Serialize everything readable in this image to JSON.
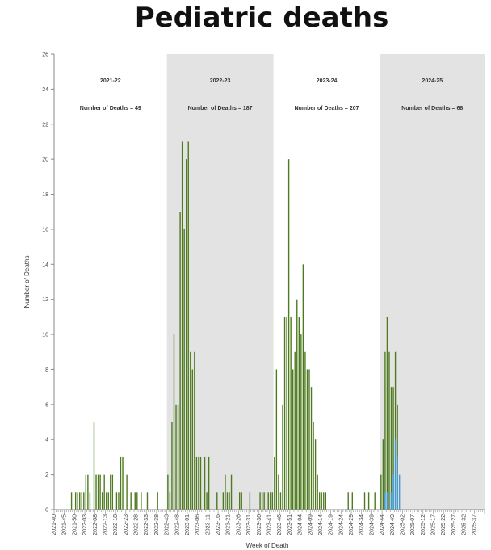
{
  "title": "Pediatric deaths",
  "colors": {
    "bar": "#4d7a1e",
    "current": "#3a9be0",
    "shade": "#e3e3e3",
    "axis": "#888888"
  },
  "chart_data": {
    "type": "bar",
    "title": "Pediatric deaths",
    "xlabel": "Week of Death",
    "ylabel": "Number of Deaths",
    "ylim": [
      0,
      26
    ],
    "yticks": [
      0,
      2,
      4,
      6,
      8,
      10,
      12,
      14,
      16,
      18,
      20,
      22,
      24,
      26
    ],
    "grid": false,
    "x_tick_labels": [
      "2021-40",
      "2021-45",
      "2021-50",
      "2022-03",
      "2022-08",
      "2022-13",
      "2022-18",
      "2022-23",
      "2022-28",
      "2022-33",
      "2022-38",
      "2022-43",
      "2022-48",
      "2023-01",
      "2023-06",
      "2023-11",
      "2023-16",
      "2023-21",
      "2023-26",
      "2023-31",
      "2023-36",
      "2023-41",
      "2023-46",
      "2023-51",
      "2024-04",
      "2024-09",
      "2024-14",
      "2024-19",
      "2024-24",
      "2024-29",
      "2024-34",
      "2024-39",
      "2024-44",
      "2024-49",
      "2025-02",
      "2025-07",
      "2025-12",
      "2025-17",
      "2025-22",
      "2025-27",
      "2025-32",
      "2025-37"
    ],
    "seasons": [
      {
        "label": "2021-22",
        "annotation": "Number of Deaths = 49",
        "shaded": false
      },
      {
        "label": "2022-23",
        "annotation": "Number of Deaths = 187",
        "shaded": true
      },
      {
        "label": "2023-24",
        "annotation": "Number of Deaths = 207",
        "shaded": false
      },
      {
        "label": "2024-25",
        "annotation": "Number of Deaths = 68",
        "shaded": true
      }
    ],
    "series": [
      {
        "values": [
          0,
          0,
          0,
          0,
          0,
          0,
          0,
          0,
          1,
          0,
          1,
          1,
          1,
          1,
          1,
          2,
          2,
          1,
          0,
          5,
          2,
          2,
          2,
          1,
          2,
          1,
          1,
          2,
          2,
          0,
          1,
          1,
          3,
          3,
          0,
          2,
          0,
          1,
          0,
          1,
          1,
          0,
          1,
          0,
          0,
          1,
          0,
          0,
          0,
          0,
          1,
          0,
          0,
          0,
          0,
          2,
          1,
          5,
          10,
          6,
          6,
          17,
          21,
          16,
          20,
          21,
          9,
          8,
          9,
          3,
          3,
          3,
          0,
          3,
          1,
          3,
          0,
          0,
          0,
          1,
          0,
          0,
          1,
          2,
          1,
          1,
          2,
          0,
          0,
          0,
          1,
          1,
          0,
          0,
          0,
          1,
          0,
          0,
          0,
          0,
          1,
          1,
          1,
          0,
          1,
          1,
          1,
          3,
          8,
          2,
          1,
          6,
          11,
          11,
          20,
          11,
          8,
          9,
          12,
          11,
          10,
          14,
          9,
          8,
          8,
          7,
          5,
          4,
          2,
          1,
          1,
          1,
          1,
          0,
          0,
          0,
          0,
          0,
          0,
          0,
          0,
          0,
          0,
          1,
          0,
          1,
          0,
          0,
          0,
          0,
          0,
          1,
          0,
          1,
          0,
          0,
          1,
          0,
          0,
          2,
          4,
          9,
          11,
          9,
          7,
          7,
          9,
          6,
          0,
          0,
          0,
          0,
          0,
          0,
          0,
          0,
          0,
          0,
          0,
          0,
          0,
          0,
          0,
          0,
          0,
          0,
          0,
          0,
          0,
          0,
          0,
          0,
          0,
          0,
          0,
          0,
          0,
          0,
          0,
          0,
          0,
          0,
          0,
          0,
          0,
          0,
          0,
          0,
          0,
          0,
          0,
          0,
          0,
          0
        ]
      },
      {
        "values": [
          0,
          0,
          0,
          0,
          0,
          0,
          0,
          0,
          0,
          0,
          0,
          0,
          0,
          0,
          0,
          0,
          0,
          0,
          0,
          0,
          0,
          0,
          0,
          0,
          0,
          0,
          0,
          0,
          0,
          0,
          0,
          0,
          0,
          0,
          0,
          0,
          0,
          0,
          0,
          0,
          0,
          0,
          0,
          0,
          0,
          0,
          0,
          0,
          0,
          0,
          0,
          0,
          0,
          0,
          0,
          0,
          0,
          0,
          0,
          0,
          0,
          0,
          0,
          0,
          0,
          0,
          0,
          0,
          0,
          0,
          0,
          0,
          0,
          0,
          0,
          0,
          0,
          0,
          0,
          0,
          0,
          0,
          0,
          0,
          0,
          0,
          0,
          0,
          0,
          0,
          0,
          0,
          0,
          0,
          0,
          0,
          0,
          0,
          0,
          0,
          0,
          0,
          0,
          0,
          0,
          0,
          0,
          0,
          0,
          0,
          0,
          0,
          0,
          0,
          0,
          0,
          0,
          0,
          0,
          0,
          0,
          0,
          0,
          0,
          0,
          0,
          0,
          0,
          0,
          0,
          0,
          0,
          0,
          0,
          0,
          0,
          0,
          0,
          0,
          0,
          0,
          0,
          0,
          0,
          0,
          0,
          0,
          0,
          0,
          0,
          0,
          0,
          0,
          0,
          0,
          0,
          0,
          0,
          0,
          0,
          0,
          1,
          1,
          0,
          1,
          2,
          4,
          3,
          2,
          0,
          0,
          0,
          0,
          0,
          0,
          0,
          0,
          0,
          0,
          0,
          0,
          0,
          0,
          0,
          0,
          0,
          0,
          0,
          0,
          0,
          0,
          0,
          0,
          0,
          0,
          0,
          0,
          0,
          0,
          0,
          0,
          0,
          0,
          0,
          0,
          0,
          0,
          0,
          0,
          0,
          0,
          0,
          0,
          0,
          0,
          0
        ]
      }
    ]
  }
}
